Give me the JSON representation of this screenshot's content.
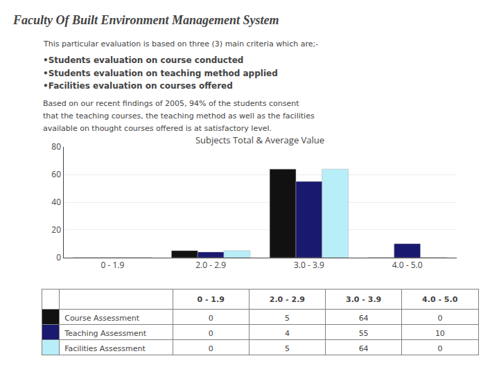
{
  "chart_data": {
    "type": "bar",
    "title": "Subjects Total & Average Value",
    "annotations": [
      "Faculty Of Built Environment Management System",
      "This particular evaluation is based on three (3) main criteria which are;-",
      "•Students evaluation on course conducted",
      "•Students evaluation on teaching method applied",
      "•Facilities evaluation on courses offered",
      "Based on our recent findings of 2005, 94% of the students consent",
      "that the teaching courses, the teaching method as well as the facilities",
      "available on thought courses offered is at satisfactory level."
    ],
    "categories": [
      "0 - 1.9",
      "2.0 - 2.9",
      "3.0 - 3.9",
      "4.0 - 5.0"
    ],
    "series": [
      {
        "name": "Course Assessment",
        "color": "#111111",
        "values": [
          0,
          5,
          64,
          0
        ]
      },
      {
        "name": "Teaching Assessment",
        "color": "#191970",
        "values": [
          0,
          4,
          55,
          10
        ]
      },
      {
        "name": "Facilities Assessment",
        "color": "#b8eef8",
        "values": [
          0,
          5,
          64,
          0
        ]
      }
    ],
    "ylim": [
      0,
      80
    ],
    "yticks": [
      0,
      20,
      40,
      60,
      80
    ],
    "grid": true
  }
}
